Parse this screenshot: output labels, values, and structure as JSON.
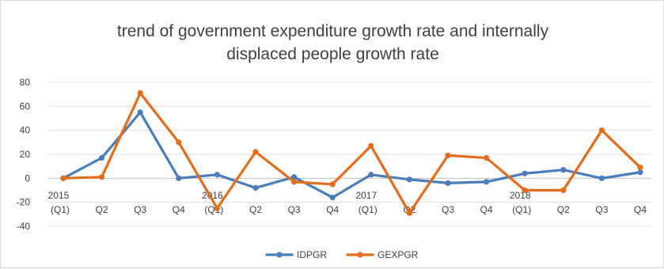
{
  "chart_data": {
    "type": "line",
    "title": [
      "trend of government expenditure growth rate and internally",
      "displaced people growth rate"
    ],
    "categories": [
      "2015 (Q1)",
      "Q2",
      "Q3",
      "Q4",
      "2016 (Q1)",
      "Q2",
      "Q3",
      "Q4",
      "2017 (Q1)",
      "Q2",
      "Q3",
      "Q4",
      "2018 (Q1)",
      "Q2",
      "Q3",
      "Q4"
    ],
    "x_tick_labels": [
      {
        "year": "2015",
        "quarter": "(Q1)"
      },
      {
        "year": "",
        "quarter": "Q2"
      },
      {
        "year": "",
        "quarter": "Q3"
      },
      {
        "year": "",
        "quarter": "Q4"
      },
      {
        "year": "2016",
        "quarter": "(Q1)"
      },
      {
        "year": "",
        "quarter": "Q2"
      },
      {
        "year": "",
        "quarter": "Q3"
      },
      {
        "year": "",
        "quarter": "Q4"
      },
      {
        "year": "2017",
        "quarter": "(Q1)"
      },
      {
        "year": "",
        "quarter": "Q2"
      },
      {
        "year": "",
        "quarter": "Q3"
      },
      {
        "year": "",
        "quarter": "Q4"
      },
      {
        "year": "2018",
        "quarter": "(Q1)"
      },
      {
        "year": "",
        "quarter": "Q2"
      },
      {
        "year": "",
        "quarter": "Q3"
      },
      {
        "year": "",
        "quarter": "Q4"
      }
    ],
    "ylim": [
      -40,
      80
    ],
    "yticks": [
      -40,
      -20,
      0,
      20,
      40,
      60,
      80
    ],
    "grid": true,
    "legend_position": "bottom",
    "series": [
      {
        "name": "IDPGR",
        "color": "#4a7ebb",
        "values": [
          0,
          17,
          55,
          0,
          3,
          -8,
          1,
          -16,
          3,
          -1,
          -4,
          -3,
          4,
          7,
          0,
          5
        ]
      },
      {
        "name": "GEXPGR",
        "color": "#e46c1b",
        "values": [
          0,
          1,
          71,
          30,
          -25,
          22,
          -3,
          -5,
          27,
          -29,
          19,
          17,
          -10,
          -10,
          40,
          9
        ]
      }
    ]
  }
}
